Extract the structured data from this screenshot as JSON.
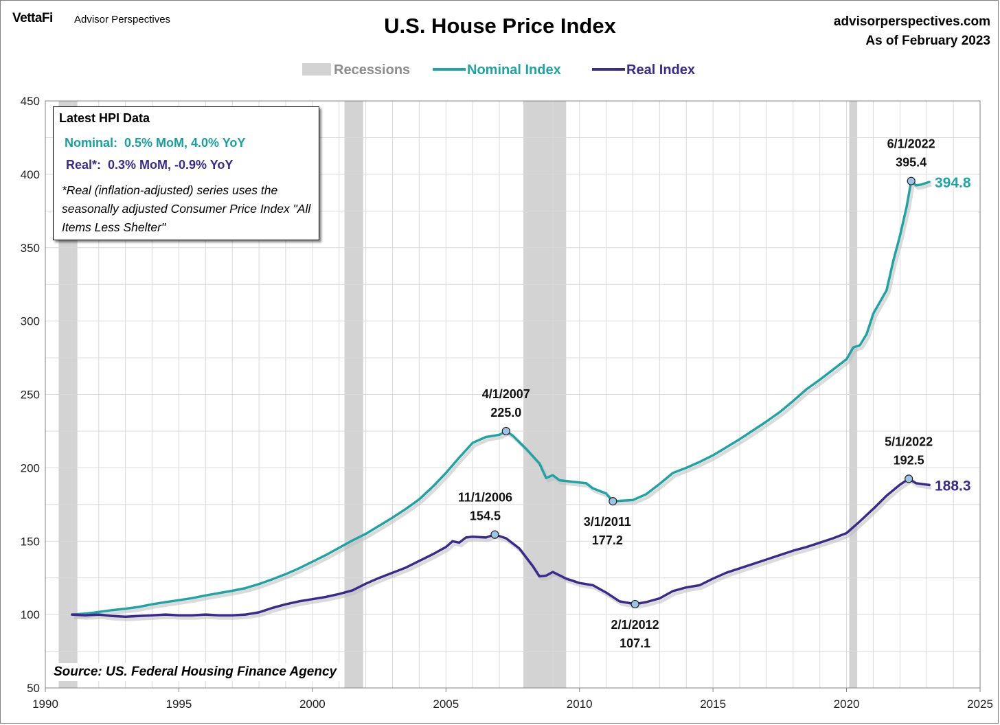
{
  "header": {
    "brand": "VettaFi",
    "brand_sub": "Advisor Perspectives",
    "site": "advisorperspectives.com",
    "as_of": "As of February 2023"
  },
  "info_box": {
    "heading": "Latest HPI Data",
    "nominal": "Nominal:  0.5% MoM, 4.0% YoY",
    "real": "Real*:  0.3% MoM, -0.9% YoY",
    "note": "*Real (inflation-adjusted) series uses the seasonally adjusted Consumer Price Index \"All Items Less Shelter\""
  },
  "source": "Source: US. Federal Housing Finance Agency",
  "colors": {
    "nominal": "#20a3a3",
    "real": "#3b2a8c",
    "recession": "#d3d3d3",
    "grid": "#d9d9d9"
  },
  "chart_data": {
    "type": "line",
    "title": "U.S. House Price Index",
    "xlim": [
      1990,
      2025
    ],
    "ylim": [
      50,
      450
    ],
    "xticks": [
      1990,
      1995,
      2000,
      2005,
      2010,
      2015,
      2020,
      2025
    ],
    "yticks": [
      50,
      100,
      150,
      200,
      250,
      300,
      350,
      400,
      450
    ],
    "grid": true,
    "legend": {
      "position": "top",
      "entries": [
        "Recessions",
        "Nominal Index",
        "Real Index"
      ]
    },
    "recessions": [
      [
        1990.5,
        1991.2
      ],
      [
        2001.2,
        2001.9
      ],
      [
        2007.9,
        2009.5
      ],
      [
        2020.1,
        2020.4
      ]
    ],
    "series": [
      {
        "name": "Nominal Index",
        "points": [
          [
            1991.0,
            100.0
          ],
          [
            1991.5,
            100.6
          ],
          [
            1992.0,
            101.8
          ],
          [
            1992.5,
            103.0
          ],
          [
            1993.0,
            104.0
          ],
          [
            1993.5,
            105.2
          ],
          [
            1994.0,
            107.0
          ],
          [
            1994.5,
            108.5
          ],
          [
            1995.0,
            109.8
          ],
          [
            1995.5,
            111.2
          ],
          [
            1996.0,
            113.0
          ],
          [
            1996.5,
            114.6
          ],
          [
            1997.0,
            116.2
          ],
          [
            1997.5,
            118.0
          ],
          [
            1998.0,
            120.8
          ],
          [
            1998.5,
            124.0
          ],
          [
            1999.0,
            127.5
          ],
          [
            1999.5,
            131.5
          ],
          [
            2000.0,
            136.0
          ],
          [
            2000.5,
            140.5
          ],
          [
            2001.0,
            145.5
          ],
          [
            2001.5,
            150.5
          ],
          [
            2002.0,
            155.0
          ],
          [
            2002.5,
            160.5
          ],
          [
            2003.0,
            166.0
          ],
          [
            2003.5,
            172.0
          ],
          [
            2004.0,
            178.5
          ],
          [
            2004.5,
            187.0
          ],
          [
            2005.0,
            196.5
          ],
          [
            2005.5,
            207.0
          ],
          [
            2006.0,
            217.0
          ],
          [
            2006.5,
            221.0
          ],
          [
            2007.0,
            222.5
          ],
          [
            2007.25,
            225.0
          ],
          [
            2007.5,
            222.0
          ],
          [
            2008.0,
            213.0
          ],
          [
            2008.5,
            203.0
          ],
          [
            2008.75,
            193.0
          ],
          [
            2009.0,
            195.0
          ],
          [
            2009.25,
            191.5
          ],
          [
            2009.75,
            190.5
          ],
          [
            2010.25,
            189.5
          ],
          [
            2010.5,
            186.0
          ],
          [
            2011.0,
            182.5
          ],
          [
            2011.25,
            177.2
          ],
          [
            2011.5,
            177.5
          ],
          [
            2012.0,
            178.0
          ],
          [
            2012.5,
            182.0
          ],
          [
            2013.0,
            189.0
          ],
          [
            2013.5,
            196.5
          ],
          [
            2014.0,
            200.0
          ],
          [
            2014.5,
            204.0
          ],
          [
            2015.0,
            208.5
          ],
          [
            2015.5,
            214.0
          ],
          [
            2016.0,
            219.5
          ],
          [
            2016.5,
            225.5
          ],
          [
            2017.0,
            231.5
          ],
          [
            2017.5,
            238.0
          ],
          [
            2018.0,
            245.5
          ],
          [
            2018.5,
            253.5
          ],
          [
            2019.0,
            260.0
          ],
          [
            2019.5,
            267.0
          ],
          [
            2020.0,
            274.0
          ],
          [
            2020.25,
            282.0
          ],
          [
            2020.5,
            283.5
          ],
          [
            2020.75,
            291.0
          ],
          [
            2021.0,
            305.0
          ],
          [
            2021.5,
            321.0
          ],
          [
            2021.75,
            341.0
          ],
          [
            2022.0,
            358.0
          ],
          [
            2022.25,
            378.0
          ],
          [
            2022.42,
            395.4
          ],
          [
            2022.6,
            392.5
          ],
          [
            2022.8,
            393.0
          ],
          [
            2023.1,
            394.8
          ]
        ]
      },
      {
        "name": "Real Index",
        "points": [
          [
            1991.0,
            100.0
          ],
          [
            1991.5,
            99.5
          ],
          [
            1992.0,
            100.0
          ],
          [
            1992.5,
            99.0
          ],
          [
            1993.0,
            98.5
          ],
          [
            1993.5,
            99.0
          ],
          [
            1994.0,
            99.5
          ],
          [
            1994.5,
            100.0
          ],
          [
            1995.0,
            99.5
          ],
          [
            1995.5,
            99.5
          ],
          [
            1996.0,
            100.0
          ],
          [
            1996.5,
            99.5
          ],
          [
            1997.0,
            99.5
          ],
          [
            1997.5,
            100.0
          ],
          [
            1998.0,
            101.5
          ],
          [
            1998.5,
            104.5
          ],
          [
            1999.0,
            107.0
          ],
          [
            1999.5,
            109.0
          ],
          [
            2000.0,
            110.5
          ],
          [
            2000.5,
            112.0
          ],
          [
            2001.0,
            114.0
          ],
          [
            2001.5,
            116.5
          ],
          [
            2002.0,
            121.0
          ],
          [
            2002.5,
            125.0
          ],
          [
            2003.0,
            128.5
          ],
          [
            2003.5,
            132.0
          ],
          [
            2004.0,
            136.5
          ],
          [
            2004.5,
            141.0
          ],
          [
            2005.0,
            146.0
          ],
          [
            2005.25,
            150.0
          ],
          [
            2005.5,
            149.0
          ],
          [
            2005.75,
            152.5
          ],
          [
            2006.0,
            153.0
          ],
          [
            2006.5,
            152.5
          ],
          [
            2006.83,
            154.5
          ],
          [
            2007.25,
            152.0
          ],
          [
            2007.75,
            145.0
          ],
          [
            2008.25,
            133.0
          ],
          [
            2008.5,
            126.0
          ],
          [
            2008.75,
            126.5
          ],
          [
            2009.0,
            129.0
          ],
          [
            2009.5,
            124.5
          ],
          [
            2010.0,
            121.5
          ],
          [
            2010.5,
            120.0
          ],
          [
            2011.0,
            115.0
          ],
          [
            2011.5,
            109.0
          ],
          [
            2012.08,
            107.1
          ],
          [
            2012.5,
            108.5
          ],
          [
            2013.0,
            111.0
          ],
          [
            2013.5,
            116.0
          ],
          [
            2014.0,
            118.5
          ],
          [
            2014.5,
            120.0
          ],
          [
            2015.0,
            124.5
          ],
          [
            2015.5,
            128.5
          ],
          [
            2016.0,
            131.5
          ],
          [
            2016.5,
            134.5
          ],
          [
            2017.0,
            137.5
          ],
          [
            2017.5,
            140.5
          ],
          [
            2018.0,
            143.5
          ],
          [
            2018.5,
            146.0
          ],
          [
            2019.0,
            149.0
          ],
          [
            2019.5,
            152.0
          ],
          [
            2020.0,
            155.5
          ],
          [
            2020.5,
            163.5
          ],
          [
            2021.0,
            172.0
          ],
          [
            2021.5,
            181.0
          ],
          [
            2022.0,
            188.5
          ],
          [
            2022.33,
            192.5
          ],
          [
            2022.6,
            189.5
          ],
          [
            2023.1,
            188.3
          ]
        ]
      }
    ],
    "annotations": [
      {
        "date": "4/1/2007",
        "value": "225.0",
        "series": "Nominal Index",
        "x": 2007.25,
        "y": 225.0,
        "pos": "above"
      },
      {
        "date": "3/1/2011",
        "value": "177.2",
        "series": "Nominal Index",
        "x": 2011.25,
        "y": 177.2,
        "pos": "below"
      },
      {
        "date": "6/1/2022",
        "value": "395.4",
        "series": "Nominal Index",
        "x": 2022.42,
        "y": 395.4,
        "pos": "above"
      },
      {
        "date": "11/1/2006",
        "value": "154.5",
        "series": "Real Index",
        "x": 2006.83,
        "y": 154.5,
        "pos": "above"
      },
      {
        "date": "2/1/2012",
        "value": "107.1",
        "series": "Real Index",
        "x": 2012.08,
        "y": 107.1,
        "pos": "below"
      },
      {
        "date": "5/1/2022",
        "value": "192.5",
        "series": "Real Index",
        "x": 2022.33,
        "y": 192.5,
        "pos": "above"
      }
    ],
    "end_labels": [
      {
        "series": "Nominal Index",
        "text": "394.8",
        "y": 394.8
      },
      {
        "series": "Real Index",
        "text": "188.3",
        "y": 188.3
      }
    ]
  }
}
